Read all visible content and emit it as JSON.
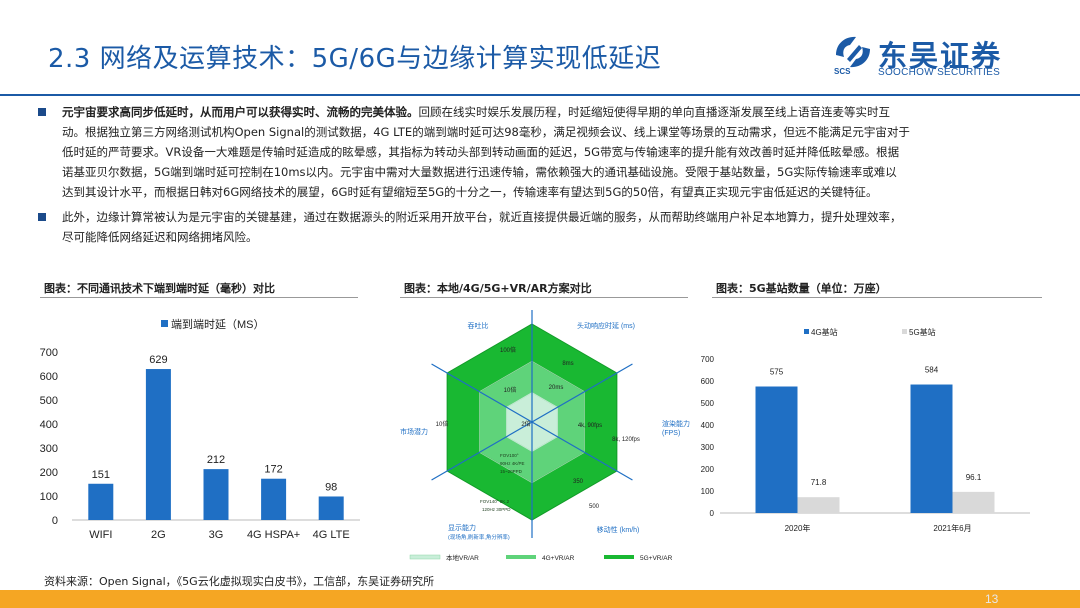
{
  "header": {
    "title": "2.3 网络及运算技术：5G/6G与边缘计算实现低延迟",
    "logo_cn": "东吴证券",
    "logo_en": "SOOCHOW SECURITIES",
    "logo_abbr": "SCS",
    "brand_color": "#1b5aa6"
  },
  "paragraphs": [
    {
      "bold": "元宇宙要求高同步低延时，从而用户可以获得实时、流畅的完美体验。",
      "lines": [
        "回顾在线实时娱乐发展历程，时延缩短使得早期的单向直播逐渐发展至线上语音连麦等实时互",
        "动。根据独立第三方网络测试机构Open Signal的测试数据，4G LTE的端到端时延可达98毫秒，满足视频会议、线上课堂等场景的互动需求，但远不能满足元宇宙对于",
        "低时延的严苛要求。VR设备一大难题是传输时延造成的眩晕感，其指标为转动头部到转动画面的延迟，5G带宽与传输速率的提升能有效改善时延并降低眩晕感。根据",
        "诺基亚贝尔数据，5G端到端时延可控制在10ms以内。元宇宙中需对大量数据进行迅速传输，需依赖强大的通讯基础设施。受限于基站数量，5G实际传输速率或难以",
        "达到其设计水平，而根据日韩对6G网络技术的展望，6G时延有望缩短至5G的十分之一，传输速率有望达到5G的50倍，有望真正实现元宇宙低延迟的关键特征。"
      ]
    },
    {
      "lines": [
        "此外，边缘计算常被认为是元宇宙的关键基建，通过在数据源头的附近采用开放平台，就近直接提供最近端的服务，从而帮助终端用户补足本地算力，提升处理效率，",
        "尽可能降低网络延迟和网络拥堵风险。"
      ]
    }
  ],
  "captions": {
    "chart1": "图表：不同通讯技术下端到端时延（毫秒）对比",
    "chart2": "图表：本地/4G/5G+VR/AR方案对比",
    "chart3": "图表：5G基站数量（单位：万座）"
  },
  "source": "资料来源：Open Signal，《5G云化虚拟现实白皮书》，工信部，东吴证券研究所",
  "page_number": "13",
  "footer_color": "#f5a623",
  "chart_data": [
    {
      "type": "bar",
      "categories": [
        "WIFI",
        "2G",
        "3G",
        "4G HSPA+",
        "4G LTE"
      ],
      "series": [
        {
          "name": "端到端时延（MS）",
          "values": [
            151,
            629,
            212,
            172,
            98
          ],
          "color": "#1f6fc4"
        }
      ],
      "ylim": [
        0,
        700
      ],
      "yticks": [
        0,
        100,
        200,
        300,
        400,
        500,
        600,
        700
      ],
      "legend": "top"
    },
    {
      "type": "radar",
      "axes": [
        "吞吐比",
        "头动响应时延 (ms)",
        "渲染能力 (FPS)",
        "移动性 (km/h)",
        "显示能力 (现场角,刷新率,角分辨率)",
        "市场潜力"
      ],
      "annotations": [
        "100倍",
        "8ms",
        "10倍",
        "20ms",
        "2倍",
        "10倍",
        "4k, 90fps",
        "8k, 120fps",
        "350",
        "500"
      ],
      "display_annotations": [
        "FOV100°",
        "90Hz 4K/PE",
        "15~20PPD",
        "FOV140°\\n8K,2",
        "120Hz\\n30PPD"
      ],
      "series": [
        {
          "name": "本地VR/AR",
          "color": "#c9eed9"
        },
        {
          "name": "4G+VR/AR",
          "color": "#5fd37a"
        },
        {
          "name": "5G+VR/AR",
          "color": "#19b832"
        }
      ],
      "legend": "bottom"
    },
    {
      "type": "bar",
      "categories": [
        "2020年",
        "2021年6月"
      ],
      "series": [
        {
          "name": "4G基站",
          "values": [
            575,
            584
          ],
          "color": "#1f6fc4"
        },
        {
          "name": "5G基站",
          "values": [
            71.8,
            96.1
          ],
          "color": "#d9d9d9"
        }
      ],
      "ylim": [
        0,
        700
      ],
      "yticks": [
        0,
        100,
        200,
        300,
        400,
        500,
        600,
        700
      ],
      "legend": "top"
    }
  ]
}
